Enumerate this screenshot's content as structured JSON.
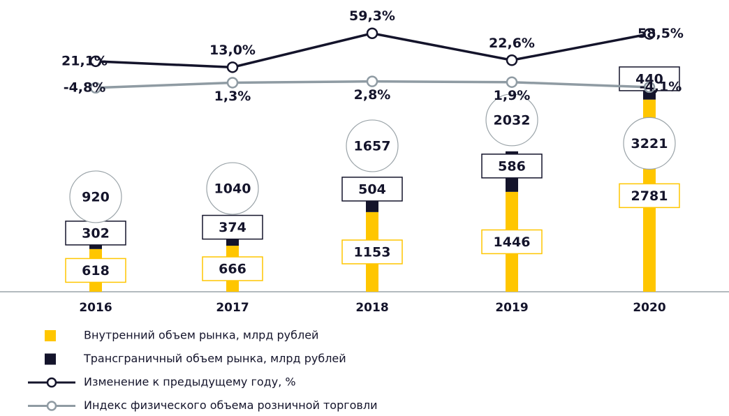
{
  "chart_data": {
    "type": "bar",
    "stacked": true,
    "categories": [
      "2016",
      "2017",
      "2018",
      "2019",
      "2020"
    ],
    "series": [
      {
        "name": "Внутренний объем рынка, млрд рублей",
        "color": "#ffc600",
        "values": [
          618,
          666,
          1153,
          1446,
          2781
        ]
      },
      {
        "name": "Трансграничный объем рынка, млрд рублей",
        "color": "#14142b",
        "values": [
          302,
          374,
          504,
          586,
          440
        ]
      },
      {
        "name": "Изменение к предыдущему году, %",
        "type": "line",
        "color": "#14142b",
        "values": [
          21.1,
          13.0,
          59.3,
          22.6,
          58.5
        ],
        "value_labels": [
          "21,1%",
          "13,0%",
          "59,3%",
          "22,6%",
          "58,5%"
        ]
      },
      {
        "name": "Индекс физического объема розничной торговли",
        "type": "line",
        "color": "#8f9ba3",
        "values": [
          -4.8,
          1.3,
          2.8,
          1.9,
          -4.1
        ],
        "value_labels": [
          "-4,8%",
          "1,3%",
          "2,8%",
          "1,9%",
          "-4,1%"
        ]
      }
    ],
    "totals": [
      920,
      1040,
      1657,
      2032,
      3221
    ]
  }
}
